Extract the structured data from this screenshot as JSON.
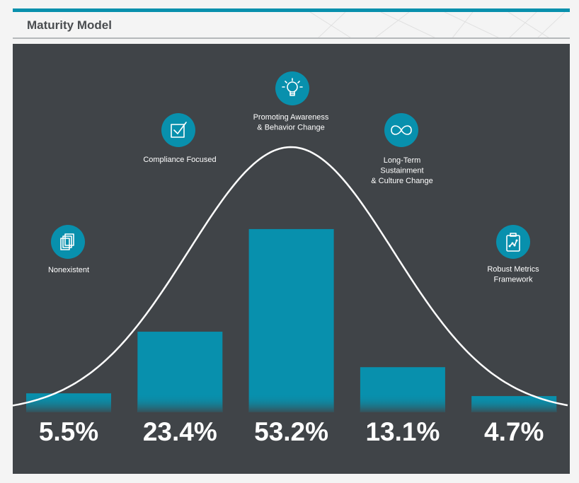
{
  "header": {
    "title": "Maturity Model"
  },
  "colors": {
    "accent": "#0890ad",
    "panel": "#404448",
    "curve": "#ffffff",
    "text": "#ffffff"
  },
  "chart_data": {
    "type": "bar",
    "title": "Maturity Model",
    "categories": [
      "Nonexistent",
      "Compliance Focused",
      "Promoting Awareness & Behavior Change",
      "Long-Term Sustainment & Culture Change",
      "Robust Metrics Framework"
    ],
    "values": [
      5.5,
      23.4,
      53.2,
      13.1,
      4.7
    ],
    "value_labels": [
      "5.5%",
      "23.4%",
      "53.2%",
      "13.1%",
      "4.7%"
    ],
    "unit": "%",
    "ylim": [
      0,
      60
    ],
    "grid": false,
    "legend": "none",
    "overlay": "bell curve",
    "stages": [
      {
        "label_lines": [
          "Nonexistent"
        ],
        "icon": "papers-icon"
      },
      {
        "label_lines": [
          "Compliance Focused"
        ],
        "icon": "checkbox-icon"
      },
      {
        "label_lines": [
          "Promoting Awareness",
          "& Behavior Change"
        ],
        "icon": "lightbulb-icon"
      },
      {
        "label_lines": [
          "Long-Term",
          "Sustainment",
          "& Culture Change"
        ],
        "icon": "infinity-icon"
      },
      {
        "label_lines": [
          "Robust Metrics",
          "Framework"
        ],
        "icon": "clipboard-chart-icon"
      }
    ]
  }
}
